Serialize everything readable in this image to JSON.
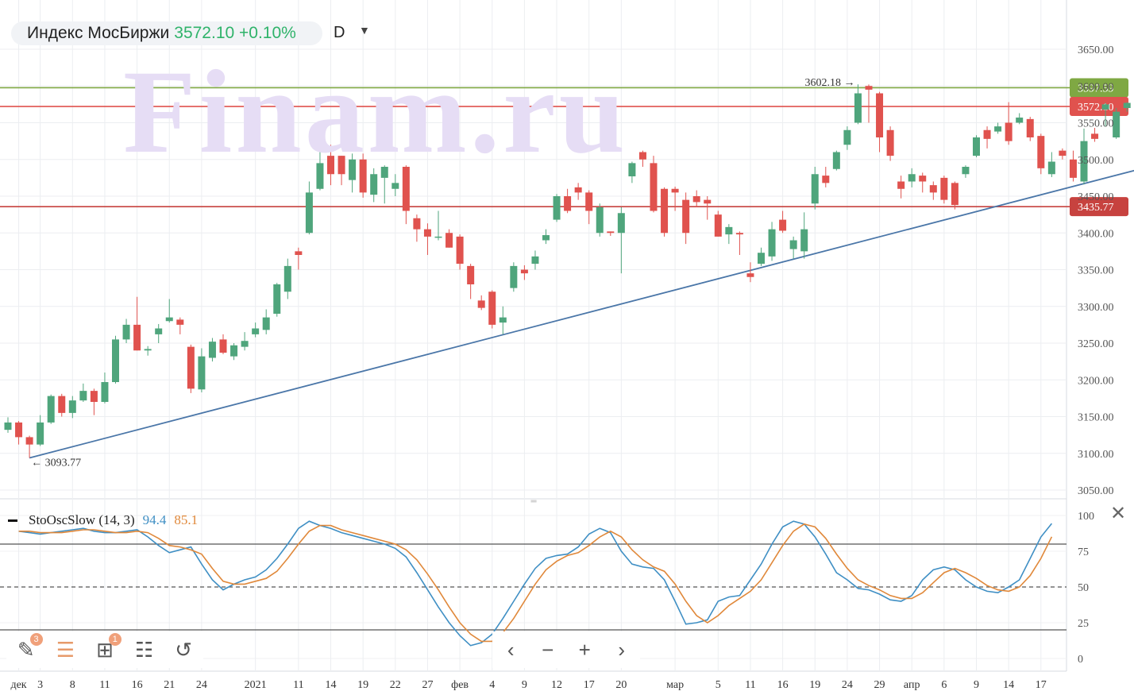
{
  "header": {
    "instrument": "Индекс МосБиржи",
    "price_change": "3572.10 +0.10%",
    "timeframe": "D"
  },
  "watermark": "Finam.ru",
  "oscillator": {
    "name": "StoOscSlow (14, 3)",
    "k_value": "94.4",
    "d_value": "85.1"
  },
  "toolbar": {
    "drawing_badge": "3",
    "layers_badge": "1"
  },
  "colors": {
    "up": "#4fa57c",
    "down": "#e0524e",
    "trendline": "#4a76a8",
    "green_level": "#7fa843",
    "red_level": "#c7423f",
    "k_line": "#3f8fc4",
    "d_line": "#e0883a"
  },
  "chart_data": [
    {
      "type": "candlestick",
      "title": "Индекс МосБиржи",
      "ylim": [
        3030,
        3680
      ],
      "y_ticks": [
        "3650.00",
        "3600.00",
        "3550.00",
        "3500.00",
        "3450.00",
        "3400.00",
        "3350.00",
        "3300.00",
        "3250.00",
        "3200.00",
        "3150.00",
        "3100.00",
        "3050.00"
      ],
      "x_labels": [
        {
          "label": "дек",
          "index": 1
        },
        {
          "label": "3",
          "index": 3
        },
        {
          "label": "8",
          "index": 6
        },
        {
          "label": "11",
          "index": 9
        },
        {
          "label": "16",
          "index": 12
        },
        {
          "label": "21",
          "index": 15
        },
        {
          "label": "24",
          "index": 18
        },
        {
          "label": "2021",
          "index": 23
        },
        {
          "label": "11",
          "index": 27
        },
        {
          "label": "14",
          "index": 30
        },
        {
          "label": "19",
          "index": 33
        },
        {
          "label": "22",
          "index": 36
        },
        {
          "label": "27",
          "index": 39
        },
        {
          "label": "фев",
          "index": 42
        },
        {
          "label": "4",
          "index": 45
        },
        {
          "label": "9",
          "index": 48
        },
        {
          "label": "12",
          "index": 51
        },
        {
          "label": "17",
          "index": 54
        },
        {
          "label": "20",
          "index": 57
        },
        {
          "label": "мар",
          "index": 62
        },
        {
          "label": "5",
          "index": 66
        },
        {
          "label": "11",
          "index": 69
        },
        {
          "label": "16",
          "index": 72
        },
        {
          "label": "19",
          "index": 75
        },
        {
          "label": "24",
          "index": 78
        },
        {
          "label": "29",
          "index": 81
        },
        {
          "label": "апр",
          "index": 84
        },
        {
          "label": "6",
          "index": 87
        },
        {
          "label": "9",
          "index": 90
        },
        {
          "label": "14",
          "index": 93
        },
        {
          "label": "17",
          "index": 96
        }
      ],
      "candles": [
        [
          3132,
          3142,
          3149,
          3128
        ],
        [
          3142,
          3122,
          3144,
          3112
        ],
        [
          3122,
          3112,
          3124,
          3093.77
        ],
        [
          3112,
          3142,
          3152,
          3110
        ],
        [
          3142,
          3178,
          3180,
          3140
        ],
        [
          3178,
          3155,
          3181,
          3150
        ],
        [
          3155,
          3172,
          3178,
          3148
        ],
        [
          3172,
          3185,
          3195,
          3170
        ],
        [
          3185,
          3170,
          3188,
          3152
        ],
        [
          3170,
          3197,
          3210,
          3168
        ],
        [
          3197,
          3255,
          3260,
          3195
        ],
        [
          3255,
          3275,
          3283,
          3250
        ],
        [
          3275,
          3240,
          3313,
          3240
        ],
        [
          3240,
          3242,
          3246,
          3233
        ],
        [
          3262,
          3270,
          3276,
          3250
        ],
        [
          3280,
          3285,
          3310,
          3278
        ],
        [
          3282,
          3275,
          3285,
          3262
        ],
        [
          3245,
          3188,
          3248,
          3182
        ],
        [
          3187,
          3232,
          3243,
          3183
        ],
        [
          3230,
          3252,
          3257,
          3225
        ],
        [
          3255,
          3237,
          3262,
          3235
        ],
        [
          3232,
          3247,
          3250,
          3227
        ],
        [
          3245,
          3253,
          3265,
          3240
        ],
        [
          3262,
          3270,
          3278,
          3258
        ],
        [
          3268,
          3285,
          3296,
          3262
        ],
        [
          3290,
          3330,
          3332,
          3286
        ],
        [
          3320,
          3355,
          3365,
          3310
        ],
        [
          3375,
          3370,
          3380,
          3350
        ],
        [
          3400,
          3455,
          3470,
          3398
        ],
        [
          3460,
          3495,
          3515,
          3458
        ],
        [
          3505,
          3480,
          3520,
          3465
        ],
        [
          3505,
          3480,
          3505,
          3465
        ],
        [
          3472,
          3500,
          3508,
          3455
        ],
        [
          3500,
          3455,
          3508,
          3448
        ],
        [
          3452,
          3480,
          3488,
          3442
        ],
        [
          3475,
          3490,
          3492,
          3440
        ],
        [
          3460,
          3468,
          3480,
          3450
        ],
        [
          3490,
          3430,
          3492,
          3412
        ],
        [
          3420,
          3405,
          3425,
          3388
        ],
        [
          3405,
          3395,
          3413,
          3370
        ],
        [
          3395,
          3395,
          3430,
          3390
        ],
        [
          3400,
          3380,
          3405,
          3380
        ],
        [
          3395,
          3358,
          3398,
          3350
        ],
        [
          3355,
          3330,
          3358,
          3310
        ],
        [
          3308,
          3298,
          3315,
          3295
        ],
        [
          3320,
          3275,
          3322,
          3270
        ],
        [
          3278,
          3285,
          3300,
          3262
        ],
        [
          3325,
          3355,
          3360,
          3320
        ],
        [
          3350,
          3345,
          3356,
          3336
        ],
        [
          3358,
          3368,
          3376,
          3350
        ],
        [
          3390,
          3397,
          3405,
          3385
        ],
        [
          3418,
          3450,
          3453,
          3415
        ],
        [
          3450,
          3430,
          3460,
          3427
        ],
        [
          3462,
          3455,
          3468,
          3445
        ],
        [
          3455,
          3430,
          3458,
          3412
        ],
        [
          3400,
          3435,
          3440,
          3395
        ],
        [
          3402,
          3400,
          3402,
          3396
        ],
        [
          3400,
          3427,
          3435,
          3345
        ],
        [
          3477,
          3495,
          3497,
          3468
        ],
        [
          3510,
          3500,
          3512,
          3490
        ],
        [
          3495,
          3430,
          3505,
          3428
        ],
        [
          3460,
          3400,
          3462,
          3395
        ],
        [
          3460,
          3455,
          3463,
          3430
        ],
        [
          3445,
          3400,
          3455,
          3385
        ],
        [
          3450,
          3442,
          3458,
          3435
        ],
        [
          3445,
          3440,
          3450,
          3418
        ],
        [
          3425,
          3395,
          3430,
          3395
        ],
        [
          3398,
          3408,
          3412,
          3385
        ],
        [
          3400,
          3398,
          3402,
          3370
        ],
        [
          3345,
          3340,
          3360,
          3333
        ],
        [
          3358,
          3373,
          3380,
          3355
        ],
        [
          3368,
          3405,
          3415,
          3362
        ],
        [
          3418,
          3403,
          3430,
          3400
        ],
        [
          3378,
          3390,
          3395,
          3365
        ],
        [
          3375,
          3405,
          3428,
          3365
        ],
        [
          3440,
          3480,
          3490,
          3432
        ],
        [
          3478,
          3468,
          3490,
          3462
        ],
        [
          3487,
          3510,
          3512,
          3485
        ],
        [
          3520,
          3540,
          3545,
          3513
        ],
        [
          3550,
          3590,
          3602.18,
          3548
        ],
        [
          3600,
          3595,
          3602,
          3550
        ],
        [
          3590,
          3530,
          3592,
          3510
        ],
        [
          3540,
          3505,
          3545,
          3498
        ],
        [
          3470,
          3460,
          3478,
          3447
        ],
        [
          3470,
          3480,
          3488,
          3462
        ],
        [
          3478,
          3470,
          3482,
          3455
        ],
        [
          3465,
          3455,
          3470,
          3445
        ],
        [
          3475,
          3445,
          3478,
          3440
        ],
        [
          3468,
          3438,
          3470,
          3432
        ],
        [
          3480,
          3490,
          3492,
          3475
        ],
        [
          3505,
          3530,
          3533,
          3503
        ],
        [
          3540,
          3528,
          3545,
          3515
        ],
        [
          3538,
          3545,
          3550,
          3535
        ],
        [
          3550,
          3525,
          3578,
          3520
        ],
        [
          3550,
          3557,
          3563,
          3548
        ],
        [
          3555,
          3530,
          3558,
          3525
        ],
        [
          3532,
          3488,
          3535,
          3480
        ],
        [
          3480,
          3497,
          3510,
          3476
        ],
        [
          3512,
          3505,
          3515,
          3500
        ],
        [
          3500,
          3475,
          3512,
          3470
        ],
        [
          3470,
          3525,
          3542,
          3466
        ],
        [
          3535,
          3528,
          3543,
          3524
        ],
        [
          3568,
          3575,
          3577,
          3545
        ],
        [
          3530,
          3565,
          3570,
          3528
        ],
        [
          3570,
          3577,
          3578,
          3565
        ],
        [
          3577,
          3572.1,
          3580,
          3565
        ]
      ],
      "horizontal_levels": [
        {
          "value": 3597.59,
          "label": "3597.59",
          "color": "#7fa843"
        },
        {
          "value": 3572.1,
          "label": "3572.10",
          "color": "#e0524e"
        },
        {
          "value": 3435.77,
          "label": "3435.77",
          "color": "#c7423f"
        }
      ],
      "trendline": {
        "from": [
          2,
          3093.77
        ],
        "to": [
          106,
          3490
        ]
      },
      "annotations": [
        {
          "text": "3093.77",
          "index": 2,
          "value": 3093.77
        },
        {
          "text": "3602.18",
          "index": 79,
          "value": 3602.18
        }
      ]
    },
    {
      "type": "line",
      "title": "StoOscSlow (14, 3)",
      "ylim": [
        -5,
        110
      ],
      "y_ticks": [
        "100",
        "75",
        "50",
        "25",
        "0"
      ],
      "reference_lines": [
        80,
        50,
        20
      ],
      "series": [
        {
          "name": "%K",
          "values": [
            89,
            88,
            87,
            88,
            89,
            90,
            91,
            89,
            88,
            88,
            89,
            90,
            85,
            79,
            74,
            76,
            78,
            66,
            55,
            48,
            52,
            55,
            57,
            62,
            70,
            80,
            91,
            96,
            93,
            91,
            88,
            86,
            84,
            82,
            80,
            77,
            71,
            60,
            48,
            36,
            25,
            16,
            9,
            11,
            17,
            28,
            40,
            52,
            63,
            70,
            72,
            73,
            78,
            87,
            91,
            88,
            75,
            66,
            64,
            63,
            55,
            40,
            24,
            25,
            27,
            40,
            43,
            44,
            55,
            66,
            80,
            92,
            96,
            94,
            85,
            73,
            60,
            55,
            49,
            48,
            45,
            41,
            40,
            44,
            55,
            62,
            64,
            62,
            55,
            50,
            47,
            46,
            50,
            55,
            70,
            85,
            94.4
          ]
        },
        {
          "name": "%D",
          "values": [
            89,
            89,
            88,
            88,
            88,
            89,
            90,
            90,
            89,
            88,
            88,
            89,
            88,
            84,
            79,
            78,
            76,
            73,
            63,
            54,
            52,
            52,
            54,
            56,
            61,
            70,
            80,
            89,
            93,
            93,
            90,
            88,
            86,
            84,
            82,
            80,
            76,
            69,
            59,
            48,
            36,
            25,
            17,
            12,
            12,
            18,
            28,
            40,
            52,
            62,
            68,
            72,
            74,
            79,
            85,
            89,
            85,
            76,
            69,
            64,
            61,
            52,
            40,
            30,
            25,
            30,
            37,
            42,
            47,
            55,
            67,
            79,
            89,
            94,
            92,
            84,
            73,
            63,
            55,
            51,
            48,
            44,
            42,
            42,
            46,
            53,
            60,
            63,
            60,
            56,
            51,
            48,
            47,
            50,
            58,
            70,
            85.1
          ]
        }
      ]
    }
  ]
}
